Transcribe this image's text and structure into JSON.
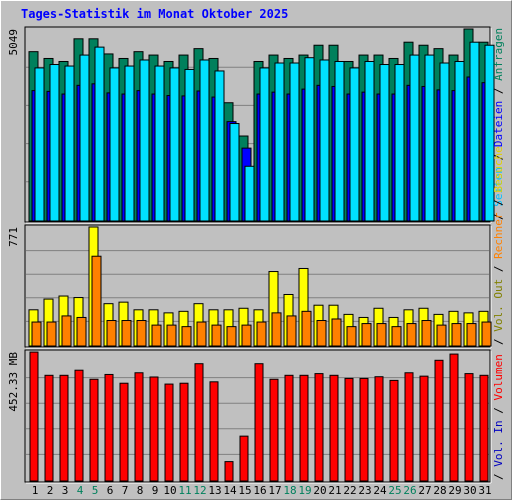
{
  "chart_data": {
    "type": "bar",
    "title": "Tages-Statistik im Monat Oktober 2025",
    "days": [
      "1",
      "2",
      "3",
      "4",
      "5",
      "6",
      "7",
      "8",
      "9",
      "10",
      "11",
      "12",
      "13",
      "14",
      "15",
      "16",
      "17",
      "18",
      "19",
      "20",
      "21",
      "22",
      "23",
      "24",
      "25",
      "26",
      "27",
      "28",
      "29",
      "30",
      "31"
    ],
    "weekend_days": [
      "4",
      "5",
      "11",
      "12",
      "18",
      "19",
      "25",
      "26"
    ],
    "day_label_colors": {
      "weekday": "#000000",
      "weekend": "#00805c"
    },
    "panels": [
      {
        "id": "top",
        "y_max_label": "5049",
        "y_max": 5049,
        "legend": [
          {
            "text": "Anfragen",
            "color": "#00805c"
          },
          {
            "text": " / ",
            "color": "#000000"
          },
          {
            "text": "Dateien",
            "color": "#0000ff"
          },
          {
            "text": " / ",
            "color": "#000000"
          },
          {
            "text": "Seiten",
            "color": "#00c0ff"
          },
          {
            "text": " / ",
            "color": "#000000"
          }
        ],
        "series": [
          {
            "name": "Anfragen",
            "color": "#00805c",
            "values": [
              4450,
              4270,
              4190,
              4790,
              4790,
              4390,
              4270,
              4450,
              4360,
              4190,
              4360,
              4530,
              4270,
              3100,
              2220,
              4190,
              4360,
              4270,
              4360,
              4620,
              4620,
              4190,
              4360,
              4360,
              4270,
              4700,
              4620,
              4530,
              4360,
              5049,
              4700
            ]
          },
          {
            "name": "Dateien",
            "color": "#0000ff",
            "values": [
              3420,
              3400,
              3330,
              3560,
              3600,
              3360,
              3330,
              3420,
              3330,
              3290,
              3280,
              3410,
              3250,
              2600,
              1900,
              3330,
              3380,
              3330,
              3460,
              3560,
              3530,
              3330,
              3380,
              3330,
              3330,
              3560,
              3530,
              3440,
              3420,
              3780,
              3630
            ]
          },
          {
            "name": "Seiten",
            "color": "#00e0ff",
            "values": [
              4020,
              4110,
              4070,
              4360,
              4570,
              4020,
              4070,
              4230,
              4070,
              4020,
              3980,
              4230,
              3940,
              2550,
              1420,
              4020,
              4150,
              4150,
              4290,
              4230,
              4190,
              4020,
              4190,
              4110,
              4110,
              4360,
              4360,
              4150,
              4190,
              4700,
              4620
            ]
          }
        ]
      },
      {
        "id": "middle",
        "y_max_label": "771",
        "y_max": 771,
        "legend": [
          {
            "text": "Besuche",
            "color": "#e0d000"
          },
          {
            "text": " / ",
            "color": "#000000"
          },
          {
            "text": "Rechner",
            "color": "#ff8000"
          },
          {
            "text": " / ",
            "color": "#000000"
          },
          {
            "text": "Vol. Out",
            "color": "#808000"
          },
          {
            "text": " / ",
            "color": "#000000"
          }
        ],
        "series": [
          {
            "name": "Besuche",
            "color": "#ffff00",
            "values": [
              230,
              300,
              320,
              310,
              771,
              270,
              280,
              230,
              230,
              210,
              220,
              270,
              230,
              230,
              240,
              230,
              480,
              330,
              500,
              260,
              260,
              200,
              180,
              240,
              180,
              230,
              240,
              200,
              220,
              210,
              220
            ]
          },
          {
            "name": "Rechner",
            "color": "#ff8000",
            "values": [
              150,
              150,
              190,
              180,
              580,
              160,
              160,
              160,
              130,
              130,
              120,
              150,
              130,
              120,
              130,
              150,
              210,
              190,
              220,
              160,
              170,
              120,
              140,
              140,
              120,
              140,
              160,
              130,
              140,
              140,
              150
            ]
          }
        ]
      },
      {
        "id": "bottom",
        "y_max_label": "452.33 MB",
        "y_max": 452.33,
        "legend": [
          {
            "text": "Volumen",
            "color": "#ff0000"
          },
          {
            "text": " / ",
            "color": "#000000"
          },
          {
            "text": "Vol. In",
            "color": "#0000c0"
          },
          {
            "text": " / ",
            "color": "#000000"
          }
        ],
        "series": [
          {
            "name": "Volumen",
            "color": "#ff0000",
            "values": [
              452,
              370,
              370,
              388,
              356,
              373,
              342,
              379,
              364,
              339,
              342,
              411,
              347,
              65,
              155,
              411,
              356,
              370,
              370,
              376,
              370,
              359,
              359,
              365,
              352,
              379,
              367,
              423,
              445,
              376,
              370
            ]
          }
        ]
      }
    ]
  }
}
